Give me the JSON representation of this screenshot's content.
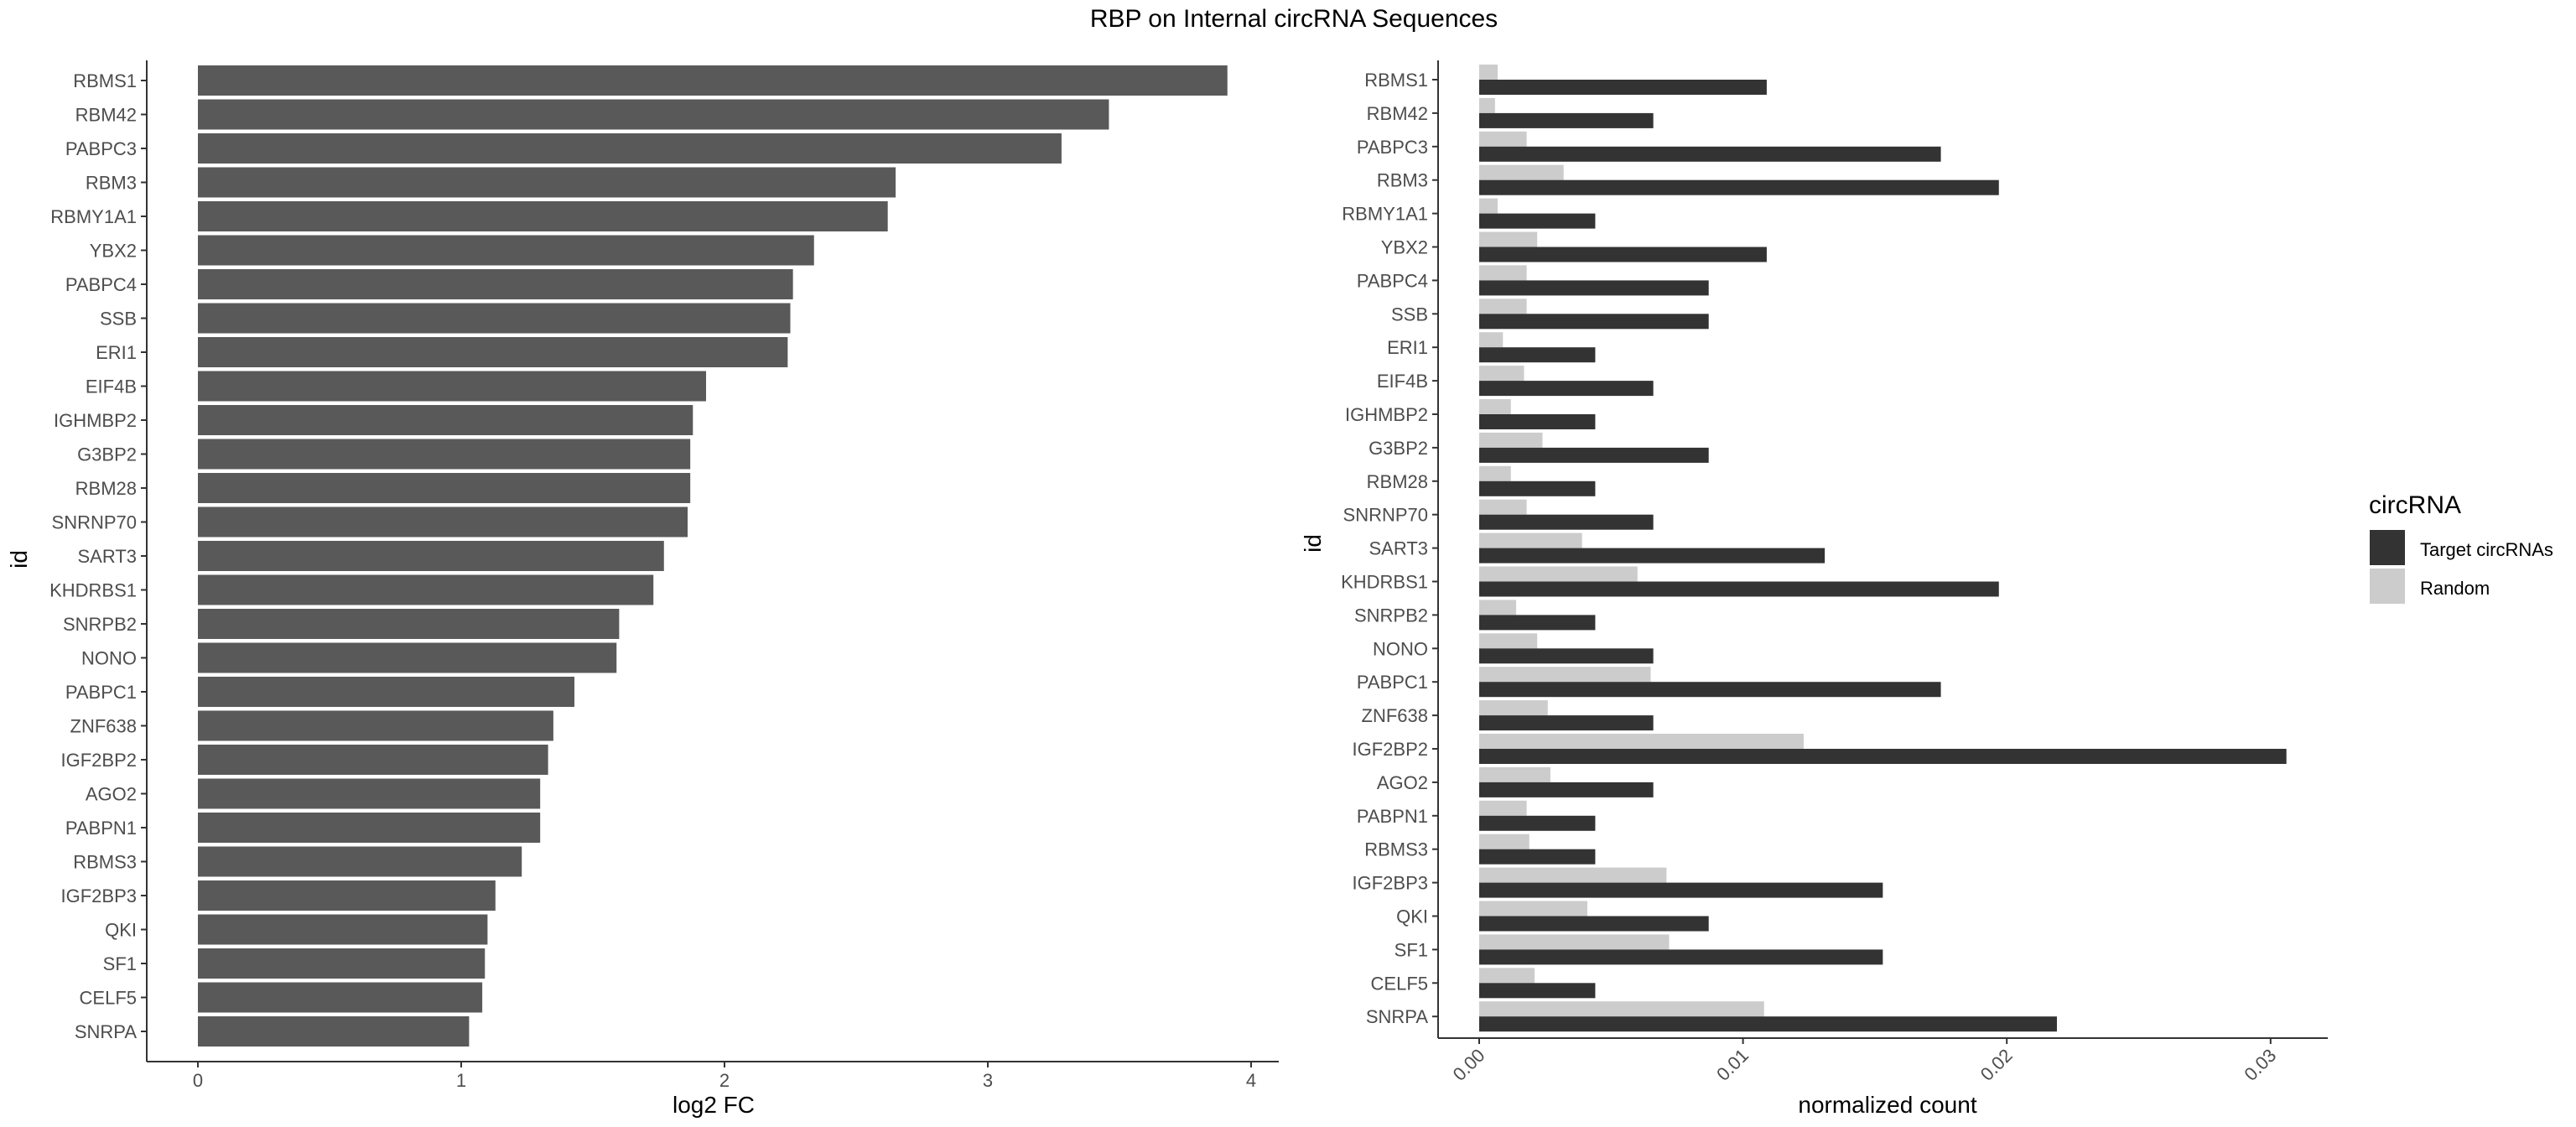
{
  "figure": {
    "title": "RBP on Internal circRNA Sequences"
  },
  "chart_data": [
    {
      "type": "bar",
      "orientation": "horizontal",
      "xlabel": "log2 FC",
      "ylabel": "id",
      "xlim": [
        0,
        4
      ],
      "xticks": [
        0,
        1,
        2,
        3,
        4
      ],
      "bar_color": "#595959",
      "grid": false,
      "categories": [
        "RBMS1",
        "RBM42",
        "PABPC3",
        "RBM3",
        "RBMY1A1",
        "YBX2",
        "PABPC4",
        "SSB",
        "ERI1",
        "EIF4B",
        "IGHMBP2",
        "G3BP2",
        "RBM28",
        "SNRNP70",
        "SART3",
        "KHDRBS1",
        "SNRPB2",
        "NONO",
        "PABPC1",
        "ZNF638",
        "IGF2BP2",
        "AGO2",
        "PABPN1",
        "RBMS3",
        "IGF2BP3",
        "QKI",
        "SF1",
        "CELF5",
        "SNRPA"
      ],
      "values": [
        3.91,
        3.46,
        3.28,
        2.65,
        2.62,
        2.34,
        2.26,
        2.25,
        2.24,
        1.93,
        1.88,
        1.87,
        1.87,
        1.86,
        1.77,
        1.73,
        1.6,
        1.59,
        1.43,
        1.35,
        1.33,
        1.3,
        1.3,
        1.23,
        1.13,
        1.1,
        1.09,
        1.08,
        1.03
      ]
    },
    {
      "type": "bar",
      "orientation": "horizontal",
      "grouped": true,
      "xlabel": "normalized count",
      "ylabel": "id",
      "xlim": [
        0,
        0.03
      ],
      "xticks": [
        "0.00",
        "0.01",
        "0.02",
        "0.03"
      ],
      "xtick_rotation": 45,
      "grid": false,
      "legend": {
        "title": "circRNA",
        "position": "right"
      },
      "categories": [
        "RBMS1",
        "RBM42",
        "PABPC3",
        "RBM3",
        "RBMY1A1",
        "YBX2",
        "PABPC4",
        "SSB",
        "ERI1",
        "EIF4B",
        "IGHMBP2",
        "G3BP2",
        "RBM28",
        "SNRNP70",
        "SART3",
        "KHDRBS1",
        "SNRPB2",
        "NONO",
        "PABPC1",
        "ZNF638",
        "IGF2BP2",
        "AGO2",
        "PABPN1",
        "RBMS3",
        "IGF2BP3",
        "QKI",
        "SF1",
        "CELF5",
        "SNRPA"
      ],
      "series": [
        {
          "name": "Target circRNAs",
          "color": "#333333",
          "values": [
            0.0109,
            0.0066,
            0.0175,
            0.0197,
            0.0044,
            0.0109,
            0.0087,
            0.0087,
            0.0044,
            0.0066,
            0.0044,
            0.0087,
            0.0044,
            0.0066,
            0.0131,
            0.0197,
            0.0044,
            0.0066,
            0.0175,
            0.0066,
            0.0306,
            0.0066,
            0.0044,
            0.0044,
            0.0153,
            0.0087,
            0.0153,
            0.0044,
            0.0219
          ]
        },
        {
          "name": "Random",
          "color": "#cccccc",
          "values": [
            0.0007,
            0.0006,
            0.0018,
            0.0032,
            0.0007,
            0.0022,
            0.0018,
            0.0018,
            0.0009,
            0.0017,
            0.0012,
            0.0024,
            0.0012,
            0.0018,
            0.0039,
            0.006,
            0.0014,
            0.0022,
            0.0065,
            0.0026,
            0.0123,
            0.0027,
            0.0018,
            0.0019,
            0.0071,
            0.0041,
            0.0072,
            0.0021,
            0.0108
          ]
        }
      ]
    }
  ]
}
